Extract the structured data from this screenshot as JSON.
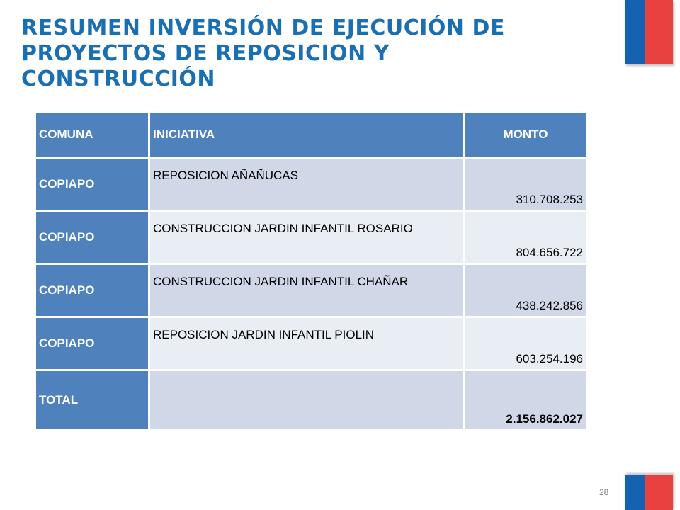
{
  "title": {
    "line1": "RESUMEN INVERSIÓN DE EJECUCIÓN DE",
    "line2": "PROYECTOS DE REPOSICION Y",
    "line3": "CONSTRUCCIÓN"
  },
  "colors": {
    "title": "#1a6fb3",
    "header_bg": "#4f81bd",
    "row_odd": "#d0d8e8",
    "row_even": "#e9edf4",
    "flag_blue": "#1462b0",
    "flag_red": "#e8413f"
  },
  "table": {
    "headers": {
      "comuna": "COMUNA",
      "iniciativa": "INICIATIVA",
      "monto": "MONTO"
    },
    "rows": [
      {
        "comuna": "COPIAPO",
        "iniciativa": "REPOSICION AÑAÑUCAS",
        "monto": "310.708.253"
      },
      {
        "comuna": "COPIAPO",
        "iniciativa": "CONSTRUCCION JARDIN INFANTIL ROSARIO",
        "monto": "804.656.722"
      },
      {
        "comuna": "COPIAPO",
        "iniciativa": "CONSTRUCCION JARDIN INFANTIL CHAÑAR",
        "monto": "438.242.856"
      },
      {
        "comuna": "COPIAPO",
        "iniciativa": "REPOSICION JARDIN INFANTIL PIOLIN",
        "monto": "603.254.196"
      }
    ],
    "total": {
      "label": "TOTAL",
      "iniciativa": "",
      "monto": "2.156.862.027"
    }
  },
  "page_number": "28"
}
